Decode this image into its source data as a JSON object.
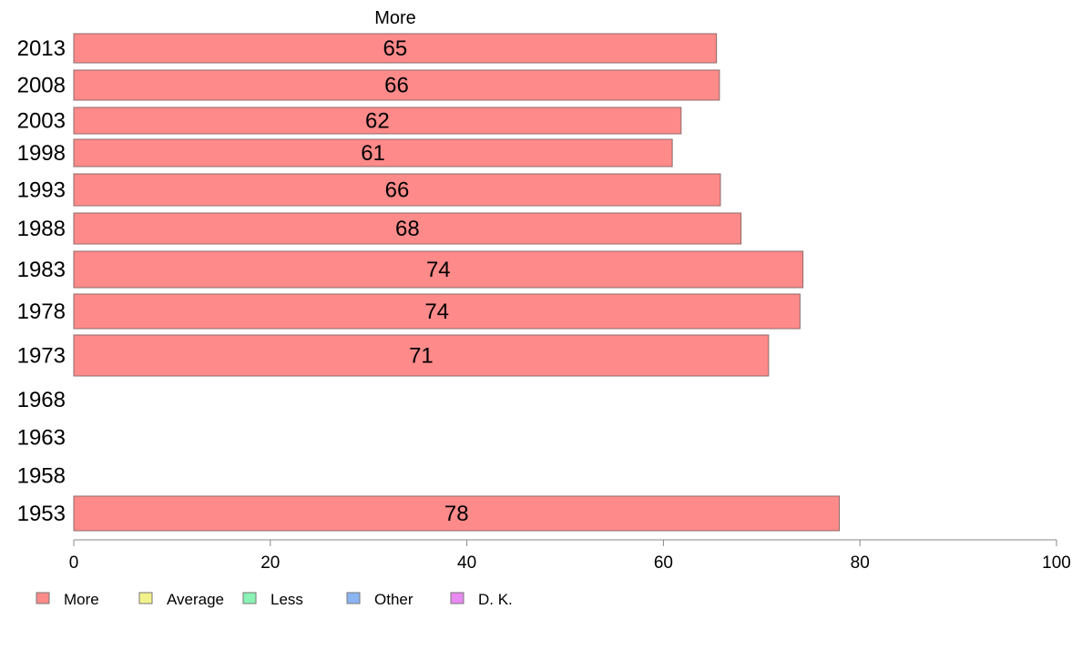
{
  "chart_data": {
    "type": "bar",
    "orientation": "horizontal",
    "title": "More",
    "xlabel": "",
    "ylabel": "",
    "xlim": [
      0,
      100
    ],
    "x_ticks": [
      0,
      20,
      40,
      60,
      80,
      100
    ],
    "grid": false,
    "categories": [
      "2013",
      "2008",
      "2003",
      "1998",
      "1993",
      "1988",
      "1983",
      "1978",
      "1973",
      "1968",
      "1963",
      "1958",
      "1953"
    ],
    "series": [
      {
        "name": "More",
        "color": "#ff8a8a",
        "values": [
          65.4,
          65.7,
          61.8,
          60.9,
          65.8,
          67.9,
          74.2,
          73.9,
          70.7,
          null,
          null,
          null,
          77.9
        ],
        "value_labels": [
          "65",
          "66",
          "62",
          "61",
          "66",
          "68",
          "74",
          "74",
          "71",
          "",
          "",
          "",
          "78"
        ]
      }
    ],
    "legend": {
      "placement": "bottom-left",
      "entries": [
        {
          "label": "More",
          "color": "#ff8a8a"
        },
        {
          "label": "Average",
          "color": "#f2f28a"
        },
        {
          "label": "Less",
          "color": "#8af2b4"
        },
        {
          "label": "Other",
          "color": "#8ab4f2"
        },
        {
          "label": "D. K.",
          "color": "#e88af2"
        }
      ]
    }
  }
}
